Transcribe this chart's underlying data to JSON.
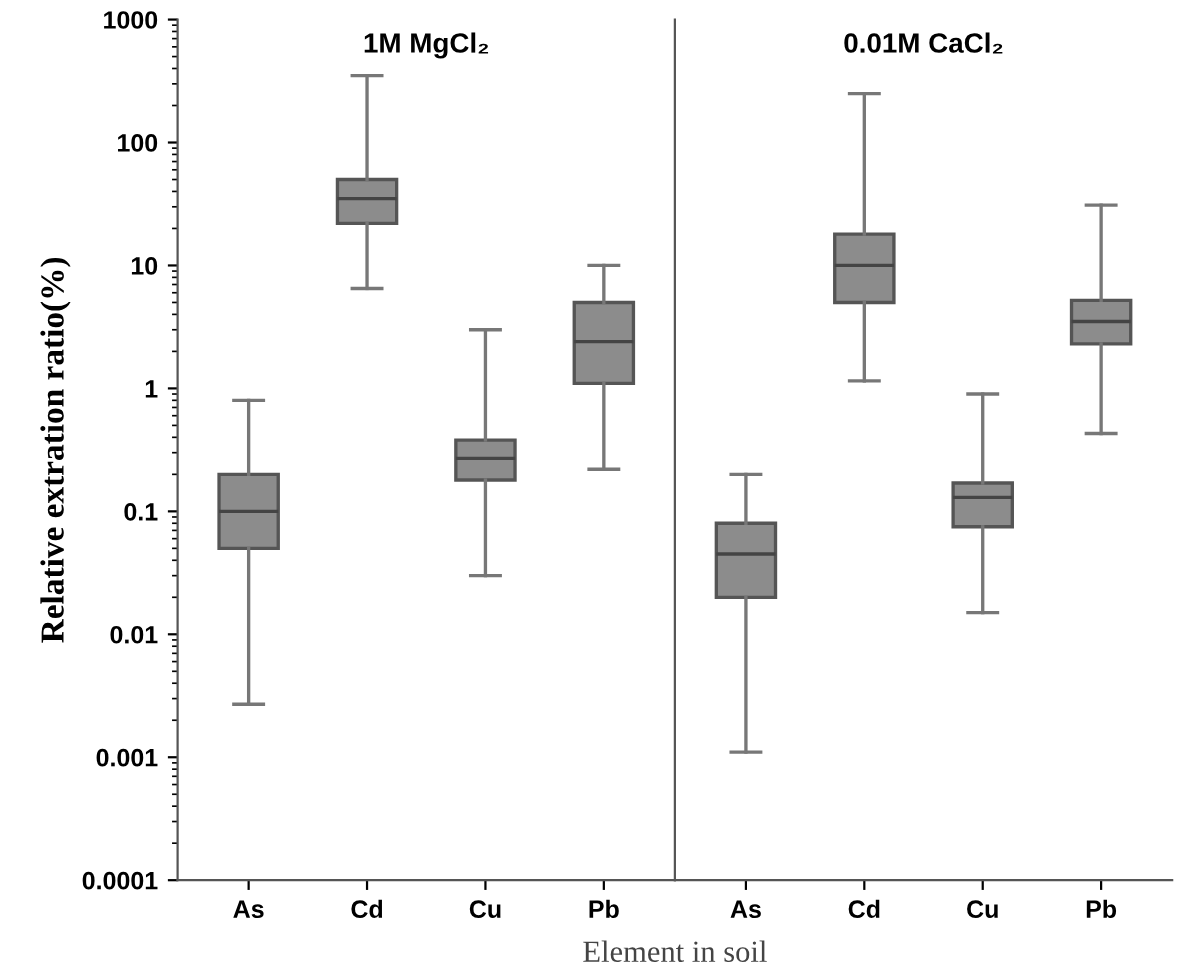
{
  "chart_data": [
    {
      "type": "box",
      "title": "1M MgCl₂",
      "xlabel": "Element in soil",
      "ylabel": "Relative extration ratio(%)",
      "categories": [
        "As",
        "Cd",
        "Cu",
        "Pb"
      ],
      "log": "y",
      "ylim": [
        0.0001,
        1000
      ],
      "yticks": [
        0.0001,
        0.001,
        0.01,
        0.1,
        1,
        10,
        100,
        1000
      ],
      "color": "#8c8c8c",
      "grid": false,
      "boxes": [
        {
          "low": 0.0027,
          "q1": 0.05,
          "median": 0.1,
          "q3": 0.2,
          "high": 0.8
        },
        {
          "low": 6.5,
          "q1": 22,
          "median": 35,
          "q3": 50,
          "high": 350
        },
        {
          "low": 0.03,
          "q1": 0.18,
          "median": 0.27,
          "q3": 0.38,
          "high": 3
        },
        {
          "low": 0.22,
          "q1": 1.1,
          "median": 2.4,
          "q3": 5,
          "high": 10
        }
      ]
    },
    {
      "type": "box",
      "title": "0.01M CaCl₂",
      "categories": [
        "As",
        "Cd",
        "Cu",
        "Pb"
      ],
      "log": "y",
      "ylim": [
        0.0001,
        1000
      ],
      "tick_labels": "x",
      "color": "#8c8c8c",
      "grid": false,
      "boxes": [
        {
          "low": 0.0011,
          "q1": 0.02,
          "median": 0.045,
          "q3": 0.08,
          "high": 0.2
        },
        {
          "low": 1.15,
          "q1": 5,
          "median": 10,
          "q3": 18,
          "high": 250
        },
        {
          "low": 0.015,
          "q1": 0.075,
          "median": 0.13,
          "q3": 0.17,
          "high": 0.9
        },
        {
          "low": 0.43,
          "q1": 2.3,
          "median": 3.5,
          "q3": 5.2,
          "high": 31
        }
      ]
    }
  ]
}
